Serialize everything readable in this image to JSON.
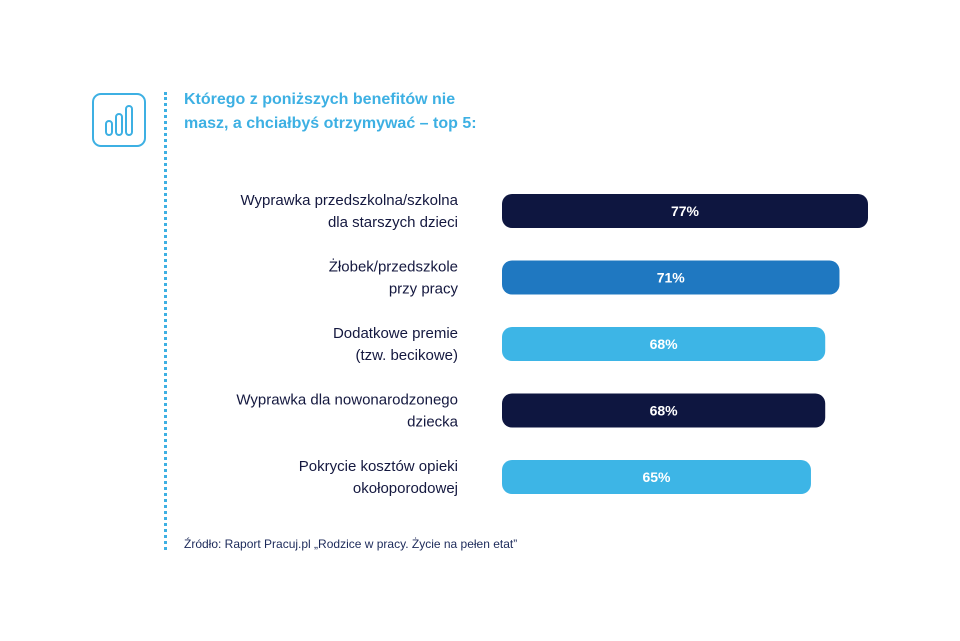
{
  "header": {
    "title_line1": "Którego z poniższych benefitów nie",
    "title_line2": "masz, a chciałbyś otrzymywać – top 5:"
  },
  "icon": "bar-chart-icon",
  "footer": {
    "source": "Źródło: Raport Pracuj.pl „Rodzice w pracy. Życie na pełen etat”"
  },
  "colors": {
    "accent": "#3db0e3",
    "navy": "#0e1640",
    "mid_blue": "#1f78c1",
    "light_blue": "#3db5e6",
    "text": "#14183f"
  },
  "chart_data": {
    "type": "bar",
    "orientation": "horizontal",
    "title": "Którego z poniższych benefitów nie masz, a chciałbyś otrzymywać – top 5:",
    "categories": [
      [
        "Wyprawka przedszkolna/szkolna",
        "dla starszych dzieci"
      ],
      [
        "Żłobek/przedszkole",
        "przy pracy"
      ],
      [
        "Dodatkowe premie",
        "(tzw. becikowe)"
      ],
      [
        "Wyprawka dla nowonarodzonego",
        "dziecka"
      ],
      [
        "Pokrycie kosztów opieki",
        "okołoporodowej"
      ]
    ],
    "values": [
      77,
      71,
      68,
      68,
      65
    ],
    "value_labels": [
      "77%",
      "71%",
      "68%",
      "68%",
      "65%"
    ],
    "bar_colors": [
      "#0e1640",
      "#1f78c1",
      "#3db5e6",
      "#0e1640",
      "#3db5e6"
    ],
    "unit": "%",
    "xlim": [
      0,
      100
    ]
  }
}
